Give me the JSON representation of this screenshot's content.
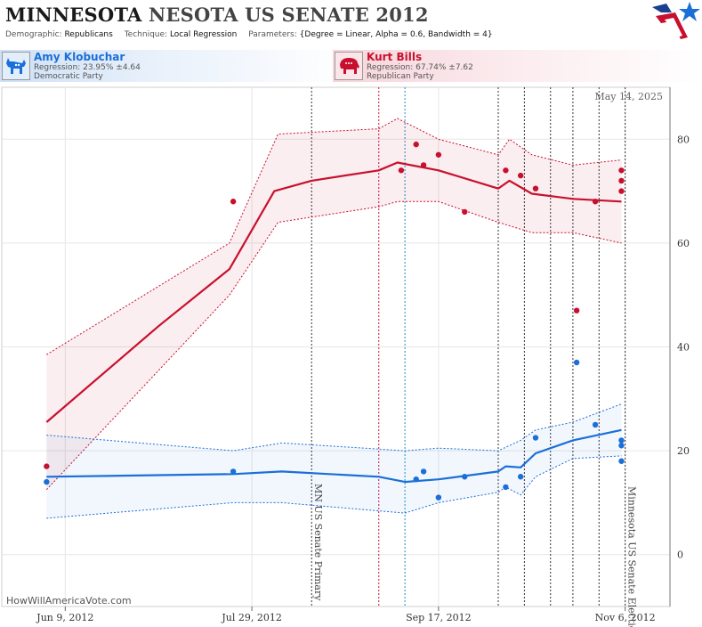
{
  "header": {
    "title_bold": "MINNESOTA",
    "title_rest": "NESOTA US SENATE 2012",
    "demographic_label": "Demographic:",
    "demographic_value": "Republicans",
    "technique_label": "Technique:",
    "technique_value": "Local Regression",
    "parameters_label": "Parameters:",
    "parameters_value": "{Degree = Linear, Alpha = 0.6, Bandwidth = 4}"
  },
  "candidates": {
    "dem": {
      "name": "Amy Klobuchar",
      "regression": "Regression: 23.95% ±4.64",
      "party": "Democratic Party",
      "icon": "donkey-icon"
    },
    "rep": {
      "name": "Kurt Bills",
      "regression": "Regression: 67.74% ±7.62",
      "party": "Republican Party",
      "icon": "elephant-icon"
    }
  },
  "watermark": "HowWillAmericaVote.com",
  "colors": {
    "dem": "#1a6fd8",
    "rep": "#c8102e",
    "grid": "#e6e6e6"
  },
  "chart_data": {
    "type": "line",
    "date_label": "May 14, 2025",
    "x_ticks": [
      {
        "x": "2012-06-09",
        "label": "Jun 9, 2012"
      },
      {
        "x": "2012-07-29",
        "label": "Jul 29, 2012"
      },
      {
        "x": "2012-09-17",
        "label": "Sep 17, 2012"
      },
      {
        "x": "2012-11-06",
        "label": "Nov 6, 2012"
      }
    ],
    "xlim": [
      "2012-05-23",
      "2012-11-18"
    ],
    "y_ticks": [
      0,
      20,
      40,
      60,
      80
    ],
    "ylim": [
      -10,
      90
    ],
    "grid": true,
    "events": [
      {
        "x": "2012-08-14",
        "label": "MN US Senate Primary"
      },
      {
        "x": "2012-11-06",
        "label": "Minnesota US Senate Election"
      }
    ],
    "red_marker_lines": [
      "2012-09-01"
    ],
    "blue_marker_lines": [
      "2012-09-08"
    ],
    "black_marker_lines": [
      "2012-10-03",
      "2012-10-10",
      "2012-10-17",
      "2012-10-23",
      "2012-10-30"
    ],
    "series": [
      {
        "name": "Kurt Bills",
        "line": [
          [
            "2012-06-04",
            25.5
          ],
          [
            "2012-07-04",
            44
          ],
          [
            "2012-07-23",
            55
          ],
          [
            "2012-08-04",
            70
          ],
          [
            "2012-08-14",
            72
          ],
          [
            "2012-09-01",
            74
          ],
          [
            "2012-09-06",
            75.5
          ],
          [
            "2012-09-17",
            74
          ],
          [
            "2012-10-03",
            70.5
          ],
          [
            "2012-10-06",
            72
          ],
          [
            "2012-10-12",
            69.5
          ],
          [
            "2012-10-23",
            68.5
          ],
          [
            "2012-11-05",
            68
          ]
        ],
        "upper": [
          [
            "2012-06-04",
            38.5
          ],
          [
            "2012-07-23",
            60
          ],
          [
            "2012-08-05",
            81
          ],
          [
            "2012-09-01",
            82
          ],
          [
            "2012-09-06",
            84
          ],
          [
            "2012-09-17",
            80
          ],
          [
            "2012-10-03",
            77
          ],
          [
            "2012-10-06",
            80
          ],
          [
            "2012-10-12",
            77
          ],
          [
            "2012-10-23",
            75
          ],
          [
            "2012-11-05",
            76
          ]
        ],
        "lower": [
          [
            "2012-06-04",
            12.5
          ],
          [
            "2012-07-23",
            50
          ],
          [
            "2012-08-05",
            64
          ],
          [
            "2012-09-01",
            67
          ],
          [
            "2012-09-06",
            68
          ],
          [
            "2012-09-17",
            68
          ],
          [
            "2012-10-03",
            64
          ],
          [
            "2012-10-12",
            62
          ],
          [
            "2012-10-23",
            62
          ],
          [
            "2012-11-05",
            60
          ]
        ],
        "points": [
          [
            "2012-06-04",
            17
          ],
          [
            "2012-07-24",
            68
          ],
          [
            "2012-09-07",
            74
          ],
          [
            "2012-09-11",
            79
          ],
          [
            "2012-09-13",
            75
          ],
          [
            "2012-09-17",
            77
          ],
          [
            "2012-09-24",
            66
          ],
          [
            "2012-10-05",
            74
          ],
          [
            "2012-10-09",
            73
          ],
          [
            "2012-10-13",
            70.5
          ],
          [
            "2012-10-24",
            47
          ],
          [
            "2012-10-29",
            68
          ],
          [
            "2012-11-05",
            74
          ],
          [
            "2012-11-05",
            72
          ],
          [
            "2012-11-05",
            70
          ]
        ]
      },
      {
        "name": "Amy Klobuchar",
        "line": [
          [
            "2012-06-04",
            15
          ],
          [
            "2012-07-24",
            15.5
          ],
          [
            "2012-08-06",
            16
          ],
          [
            "2012-09-01",
            15
          ],
          [
            "2012-09-08",
            14
          ],
          [
            "2012-09-17",
            14.5
          ],
          [
            "2012-10-03",
            16
          ],
          [
            "2012-10-05",
            17
          ],
          [
            "2012-10-09",
            16.8
          ],
          [
            "2012-10-13",
            19.5
          ],
          [
            "2012-10-23",
            22
          ],
          [
            "2012-11-05",
            24
          ]
        ],
        "upper": [
          [
            "2012-06-04",
            23
          ],
          [
            "2012-07-24",
            20
          ],
          [
            "2012-08-06",
            21.5
          ],
          [
            "2012-09-08",
            20
          ],
          [
            "2012-09-17",
            20.5
          ],
          [
            "2012-10-03",
            20
          ],
          [
            "2012-10-09",
            22
          ],
          [
            "2012-10-13",
            24
          ],
          [
            "2012-10-23",
            25.5
          ],
          [
            "2012-11-05",
            29
          ]
        ],
        "lower": [
          [
            "2012-06-04",
            7
          ],
          [
            "2012-07-24",
            10
          ],
          [
            "2012-08-06",
            10
          ],
          [
            "2012-09-08",
            8
          ],
          [
            "2012-09-17",
            10
          ],
          [
            "2012-10-03",
            12
          ],
          [
            "2012-10-05",
            13
          ],
          [
            "2012-10-09",
            11.5
          ],
          [
            "2012-10-13",
            15
          ],
          [
            "2012-10-23",
            18.5
          ],
          [
            "2012-11-05",
            19
          ]
        ],
        "points": [
          [
            "2012-06-04",
            14
          ],
          [
            "2012-07-24",
            16
          ],
          [
            "2012-09-11",
            14.5
          ],
          [
            "2012-09-13",
            16
          ],
          [
            "2012-09-17",
            11
          ],
          [
            "2012-09-24",
            15
          ],
          [
            "2012-10-05",
            13
          ],
          [
            "2012-10-09",
            15
          ],
          [
            "2012-10-13",
            22.5
          ],
          [
            "2012-10-24",
            37
          ],
          [
            "2012-10-29",
            25
          ],
          [
            "2012-11-05",
            21
          ],
          [
            "2012-11-05",
            22
          ],
          [
            "2012-11-05",
            18
          ]
        ]
      }
    ]
  }
}
